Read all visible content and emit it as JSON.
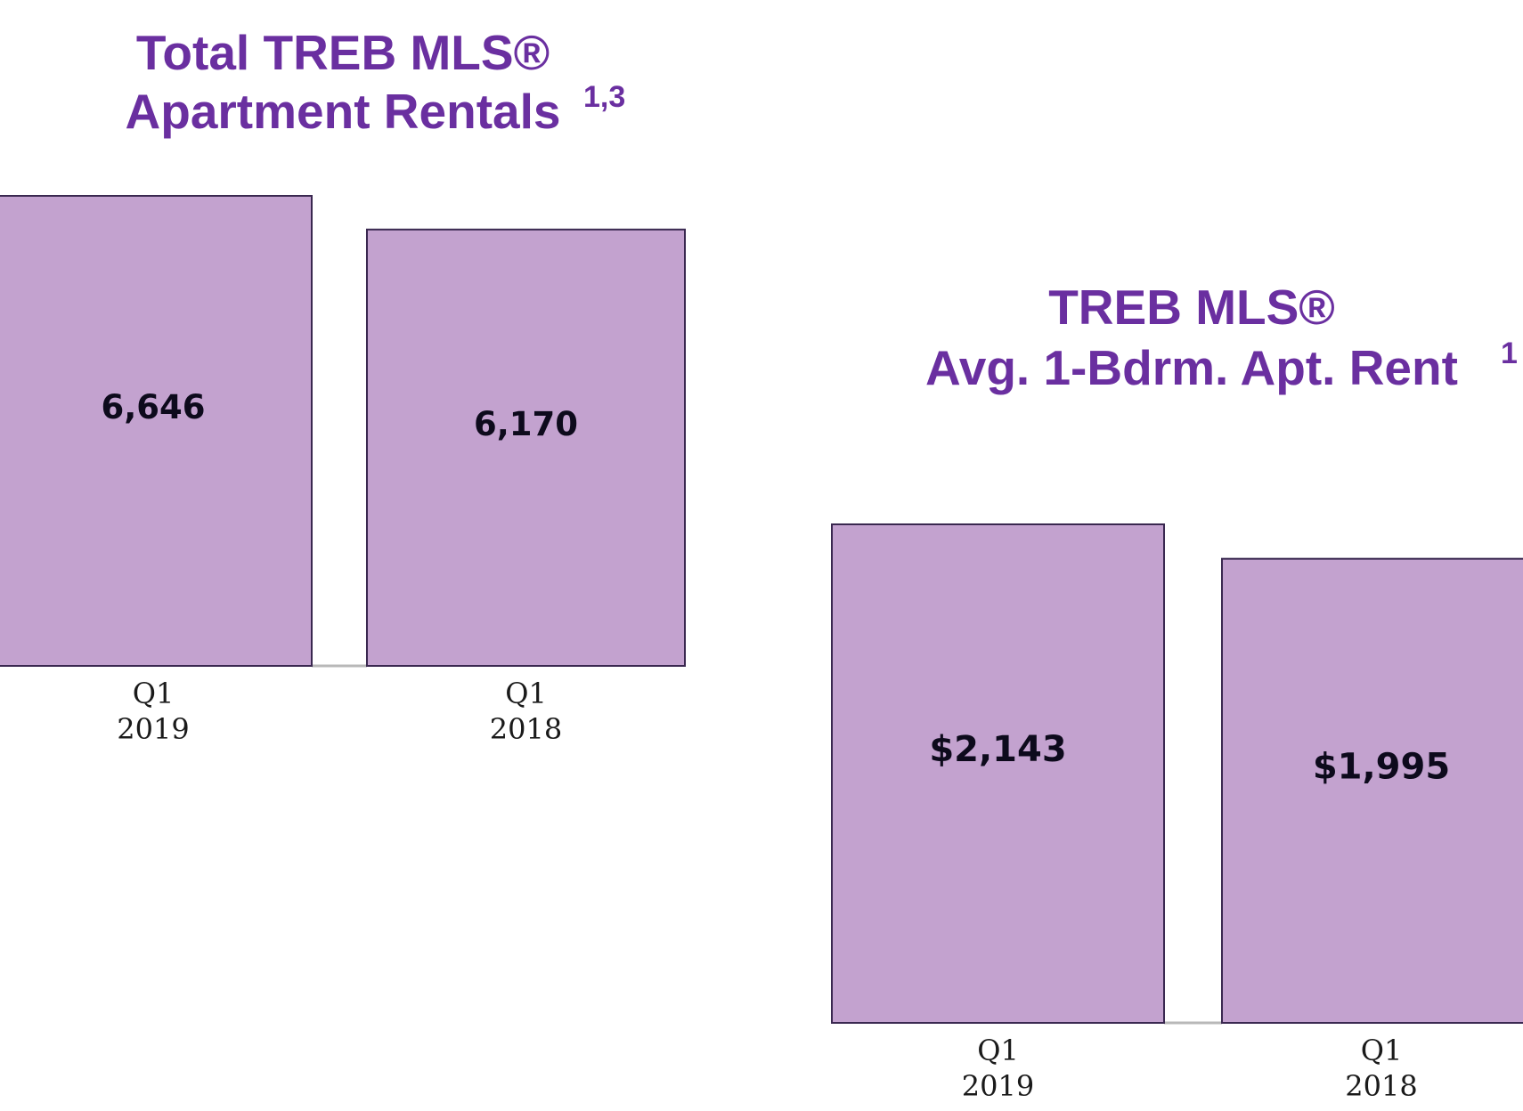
{
  "colors": {
    "title": "#6a2fa0",
    "bar_fill": "#c3a2cf",
    "bar_stroke": "#3a2850",
    "baseline": "#b8b8b8",
    "value_text": "#0d0a1c",
    "tick_text": "#1a1a1a"
  },
  "chart_data": [
    {
      "type": "bar",
      "title": "Total TREB MLS® Apartment Rentals 1,3",
      "title_lines": [
        "Total TREB MLS®",
        "Apartment Rentals"
      ],
      "title_superscript": "1,3",
      "categories": [
        {
          "period": "Q1",
          "year": "2019"
        },
        {
          "period": "Q1",
          "year": "2018"
        }
      ],
      "values": [
        6646,
        6170
      ],
      "value_labels": [
        "6,646",
        "6,170"
      ],
      "xlabel": "",
      "ylabel": "",
      "ylim": [
        0,
        6646
      ],
      "grid": false
    },
    {
      "type": "bar",
      "title": "TREB MLS® Avg. 1-Bdrm. Apt. Rent 1",
      "title_lines": [
        "TREB MLS®",
        "Avg. 1-Bdrm. Apt. Rent"
      ],
      "title_superscript": "1",
      "categories": [
        {
          "period": "Q1",
          "year": "2019"
        },
        {
          "period": "Q1",
          "year": "2018"
        }
      ],
      "values": [
        2143,
        1995
      ],
      "value_labels": [
        "$2,143",
        "$1,995"
      ],
      "xlabel": "",
      "ylabel": "",
      "ylim": [
        0,
        2143
      ],
      "grid": false
    }
  ]
}
